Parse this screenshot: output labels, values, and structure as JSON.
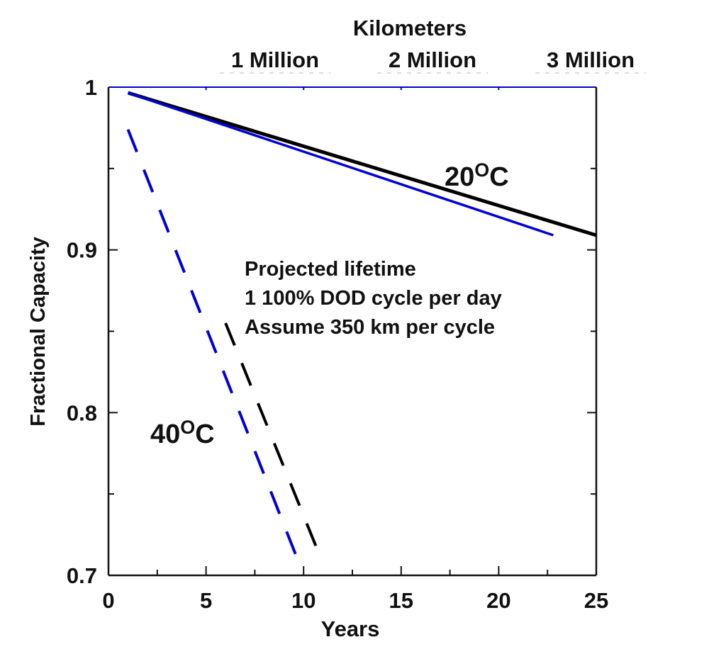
{
  "chart_data": {
    "type": "line",
    "title": "",
    "xlabel": "Years",
    "ylabel": "Fractional Capacity",
    "xlim": [
      0,
      25
    ],
    "ylim": [
      0.7,
      1.0
    ],
    "grid": false,
    "x_ticks": [
      0,
      5,
      10,
      15,
      20,
      25
    ],
    "x_minor_ticks": [
      2.5,
      7.5,
      12.5,
      17.5,
      22.5
    ],
    "y_ticks": [
      0.7,
      0.8,
      0.9,
      1
    ],
    "y_tick_labels": [
      "0.7",
      "0.8",
      "0.9",
      "1"
    ],
    "y_minor_ticks": [
      0.75,
      0.85,
      0.95
    ],
    "top_axis": {
      "label": "Kilometers",
      "tick_labels": [
        "1 Million",
        "2 Million",
        "3 Million"
      ],
      "tick_years": [
        7.83,
        15.66,
        23.48
      ],
      "axis_ticks": [
        5,
        10,
        15,
        20
      ],
      "color": "#0000cc"
    },
    "series": [
      {
        "name": "20°C (black)",
        "style": "solid",
        "color": "#000000",
        "x": [
          1,
          25
        ],
        "y": [
          0.9965,
          0.909
        ]
      },
      {
        "name": "20°C (blue)",
        "style": "solid",
        "color": "#0000dd",
        "x": [
          1,
          22.8
        ],
        "y": [
          0.9965,
          0.909
        ]
      },
      {
        "name": "40°C (black)",
        "style": "dashed",
        "color": "#000000",
        "x": [
          6,
          10.8
        ],
        "y": [
          0.855,
          0.713
        ]
      },
      {
        "name": "40°C (blue)",
        "style": "dashed",
        "color": "#0000dd",
        "x": [
          1,
          9.85
        ],
        "y": [
          0.974,
          0.705
        ]
      }
    ],
    "annotations": [
      {
        "text_main": "20",
        "text_sup": "O",
        "text_unit": "C",
        "x": 16.8,
        "y": 0.945
      },
      {
        "text_main": "40",
        "text_sup": "O",
        "text_unit": "C",
        "x": 2.2,
        "y": 0.782
      }
    ],
    "note_lines": [
      "Projected lifetime",
      "1 100% DOD cycle per day",
      "Assume 350 km per cycle"
    ],
    "note_position": {
      "x": 7.0,
      "y": 0.9
    }
  }
}
